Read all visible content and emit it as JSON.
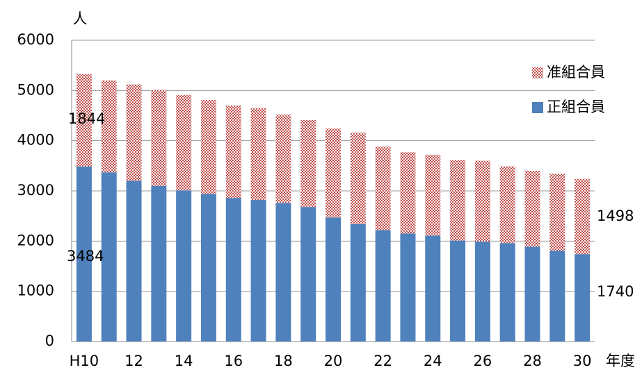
{
  "chart_data": {
    "type": "stacked-bar",
    "y_unit": "人",
    "x_unit": "年度",
    "categories": [
      "H10",
      null,
      "12",
      null,
      "14",
      null,
      "16",
      null,
      "18",
      null,
      "20",
      null,
      "22",
      null,
      "24",
      null,
      "26",
      null,
      "28",
      null,
      "30"
    ],
    "series": [
      {
        "name": "正組合員",
        "color": "#4f81bd",
        "values": [
          3484,
          3370,
          3200,
          3100,
          3010,
          2940,
          2860,
          2820,
          2760,
          2680,
          2470,
          2340,
          2220,
          2150,
          2110,
          2010,
          1990,
          1960,
          1890,
          1810,
          1740
        ]
      },
      {
        "name": "准組合員",
        "color": "#c0504d",
        "values": [
          1844,
          1830,
          1920,
          1910,
          1900,
          1870,
          1840,
          1830,
          1760,
          1730,
          1770,
          1820,
          1660,
          1620,
          1610,
          1600,
          1610,
          1530,
          1510,
          1530,
          1498
        ]
      }
    ],
    "ylim": [
      0,
      6000
    ],
    "yticks": [
      0,
      1000,
      2000,
      3000,
      4000,
      5000,
      6000
    ],
    "grid": true
  }
}
